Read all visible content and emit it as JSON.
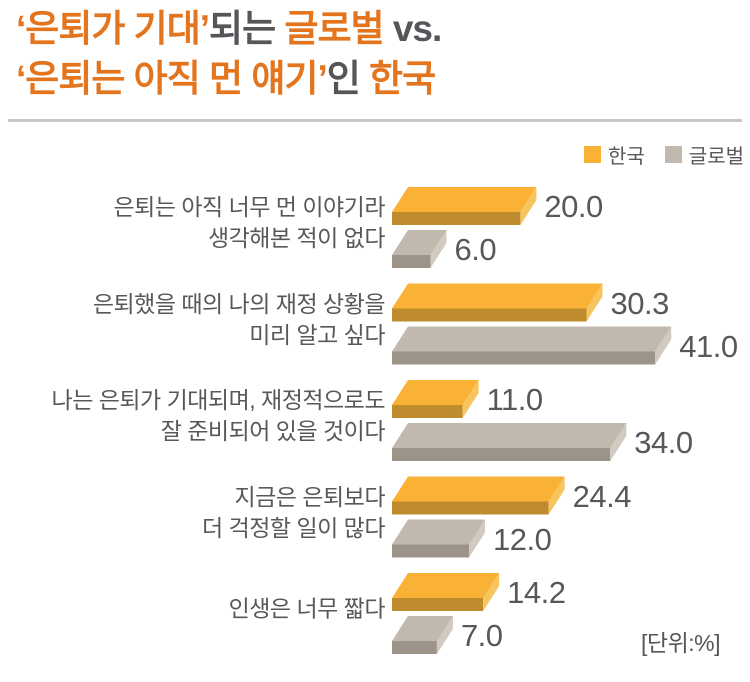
{
  "title": {
    "lines": [
      [
        {
          "text": "‘은퇴가 기대’",
          "color": "orange"
        },
        {
          "text": "되는 ",
          "color": "gray"
        },
        {
          "text": "글로벌",
          "color": "orange"
        },
        {
          "text": " vs.",
          "color": "gray"
        }
      ],
      [
        {
          "text": "‘은퇴는 아직 먼 얘기’",
          "color": "orange"
        },
        {
          "text": "인 ",
          "color": "gray"
        },
        {
          "text": "한국",
          "color": "orange"
        }
      ]
    ]
  },
  "legend": [
    {
      "label": "한국",
      "color": "#F9B235"
    },
    {
      "label": "글로벌",
      "color": "#C2B9AE"
    }
  ],
  "unit_note": "[단위:%]",
  "colors": {
    "title_orange": "#E4751F",
    "title_gray": "#55565A",
    "text_gray": "#57585B",
    "divider": "#C7C7C7",
    "korea_top": "#F9B235",
    "korea_front": "#BE8C2C",
    "korea_side": "#F7C55F",
    "global_top": "#C2B9AE",
    "global_front": "#9C9488",
    "global_side": "#D1CAC1"
  },
  "chart_data": {
    "type": "bar",
    "orientation": "horizontal",
    "unit": "%",
    "title": "‘은퇴가 기대’되는 글로벌 vs. ‘은퇴는 아직 먼 얘기’인 한국",
    "xlim": [
      0,
      45
    ],
    "grid": false,
    "legend_position": "top-right",
    "value_decimals": 1,
    "categories": [
      "은퇴는 아직 너무 먼 이야기라\n생각해본 적이 없다",
      "은퇴했을 때의 나의 재정 상황을\n미리 알고 싶다",
      "나는 은퇴가 기대되며, 재정적으로도\n잘 준비되어 있을 것이다",
      "지금은 은퇴보다\n더 걱정할 일이 많다",
      "인생은 너무 짧다"
    ],
    "series": [
      {
        "name": "한국",
        "color": "#F9B235",
        "values": [
          20.0,
          30.3,
          11.0,
          24.4,
          14.2
        ]
      },
      {
        "name": "글로벌",
        "color": "#C2B9AE",
        "values": [
          6.0,
          41.0,
          34.0,
          12.0,
          7.0
        ]
      }
    ]
  }
}
